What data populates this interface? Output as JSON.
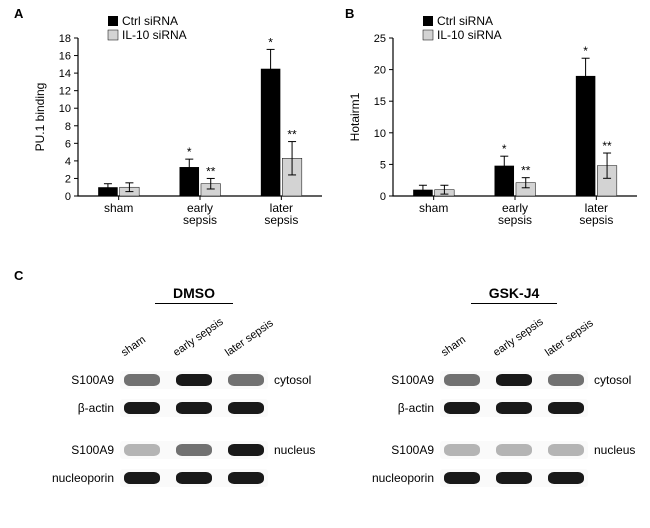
{
  "panels": {
    "A": "A",
    "B": "B",
    "C": "C"
  },
  "legend": {
    "ctrl": "Ctrl siRNA",
    "il10": "IL-10 siRNA"
  },
  "colors": {
    "ctrl": "#000000",
    "il10": "#d3d3d3",
    "axis": "#000000",
    "bg": "#ffffff"
  },
  "chartA": {
    "ylabel": "PU.1 binding",
    "ylim": [
      0,
      18
    ],
    "ytick_step": 2,
    "categories": [
      "sham",
      "early\nsepsis",
      "later\nsepsis"
    ],
    "ctrl": {
      "values": [
        1.0,
        3.3,
        14.5
      ],
      "err": [
        0.4,
        0.9,
        2.2
      ],
      "sig": [
        "",
        "*",
        "*"
      ]
    },
    "il10": {
      "values": [
        1.0,
        1.4,
        4.3
      ],
      "err": [
        0.5,
        0.6,
        1.9
      ],
      "sig": [
        "",
        "**",
        "**"
      ]
    }
  },
  "chartB": {
    "ylabel": "Hotairm1",
    "ylim": [
      0,
      25
    ],
    "ytick_step": 5,
    "categories": [
      "sham",
      "early\nsepsis",
      "later\nsepsis"
    ],
    "ctrl": {
      "values": [
        1.0,
        4.8,
        19.0
      ],
      "err": [
        0.7,
        1.5,
        2.8
      ],
      "sig": [
        "",
        "*",
        "*"
      ]
    },
    "il10": {
      "values": [
        1.0,
        2.1,
        4.8
      ],
      "err": [
        0.7,
        0.8,
        2.0
      ],
      "sig": [
        "",
        "**",
        "**"
      ]
    }
  },
  "panelC": {
    "treatments": [
      "DMSO",
      "GSK-J4"
    ],
    "lanes": [
      "sham",
      "early sepsis",
      "later sepsis"
    ],
    "rows": [
      {
        "protein": "S100A9",
        "loc": "cytosol",
        "dmso": [
          2,
          3,
          2
        ],
        "gsk": [
          2,
          3,
          2
        ]
      },
      {
        "protein": "β-actin",
        "loc": "",
        "dmso": [
          3,
          3,
          3
        ],
        "gsk": [
          3,
          3,
          3
        ]
      },
      {
        "gap": true
      },
      {
        "protein": "S100A9",
        "loc": "nucleus",
        "dmso": [
          1,
          2,
          3
        ],
        "gsk": [
          1,
          1,
          1
        ]
      },
      {
        "protein": "nucleoporin",
        "loc": "",
        "dmso": [
          3,
          3,
          3
        ],
        "gsk": [
          3,
          3,
          3
        ]
      }
    ]
  }
}
